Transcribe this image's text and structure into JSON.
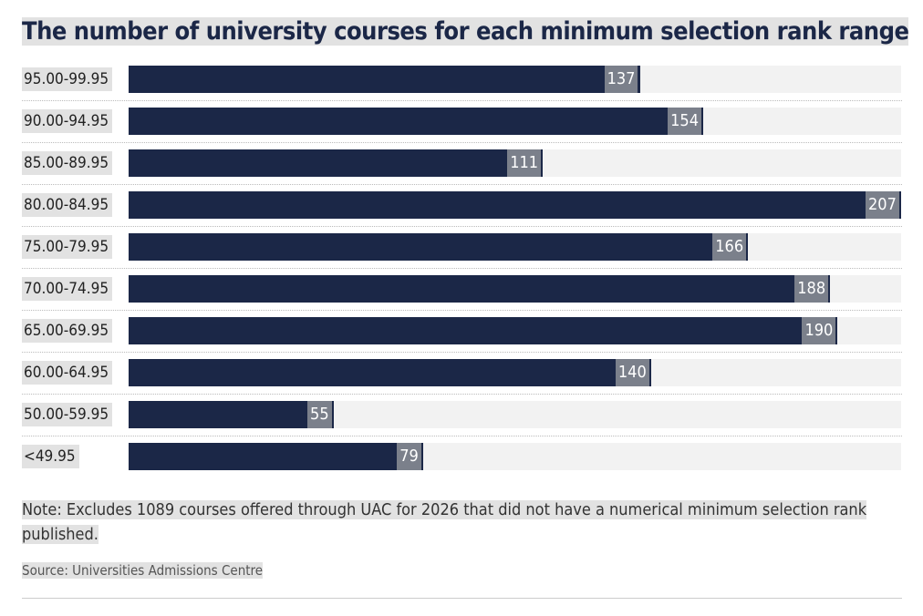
{
  "chart_data": {
    "type": "bar",
    "orientation": "horizontal",
    "title": "The number of university courses for each minimum selection rank range",
    "categories": [
      "95.00-99.95",
      "90.00-94.95",
      "85.00-89.95",
      "80.00-84.95",
      "75.00-79.95",
      "70.00-74.95",
      "65.00-69.95",
      "60.00-64.95",
      "50.00-59.95",
      "<49.95"
    ],
    "values": [
      137,
      154,
      111,
      207,
      166,
      188,
      190,
      140,
      55,
      79
    ],
    "color": "#1b2747",
    "note": "Note: Excludes 1089 courses offered through UAC for 2026 that did not have a numerical minimum selection rank published.",
    "source": "Source: Universities Admissions Centre"
  }
}
